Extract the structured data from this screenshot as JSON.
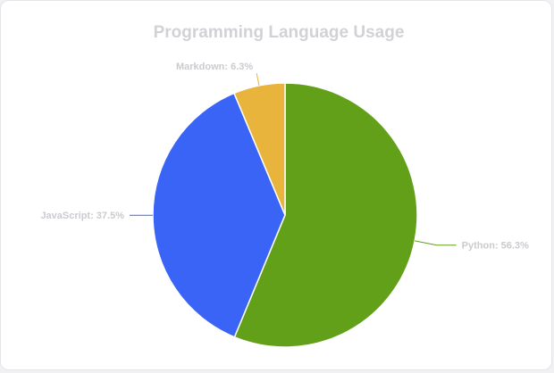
{
  "chart_data": {
    "type": "pie",
    "title": "Programming Language Usage",
    "slices": [
      {
        "name": "Python",
        "value": 56.3,
        "label": "Python: 56.3%",
        "color": "#62a01a"
      },
      {
        "name": "JavaScript",
        "value": 37.5,
        "label": "JavaScript: 37.5%",
        "color": "#3a64f6"
      },
      {
        "name": "Markdown",
        "value": 6.3,
        "label": "Markdown: 6.3%",
        "color": "#e8b43c"
      }
    ]
  }
}
